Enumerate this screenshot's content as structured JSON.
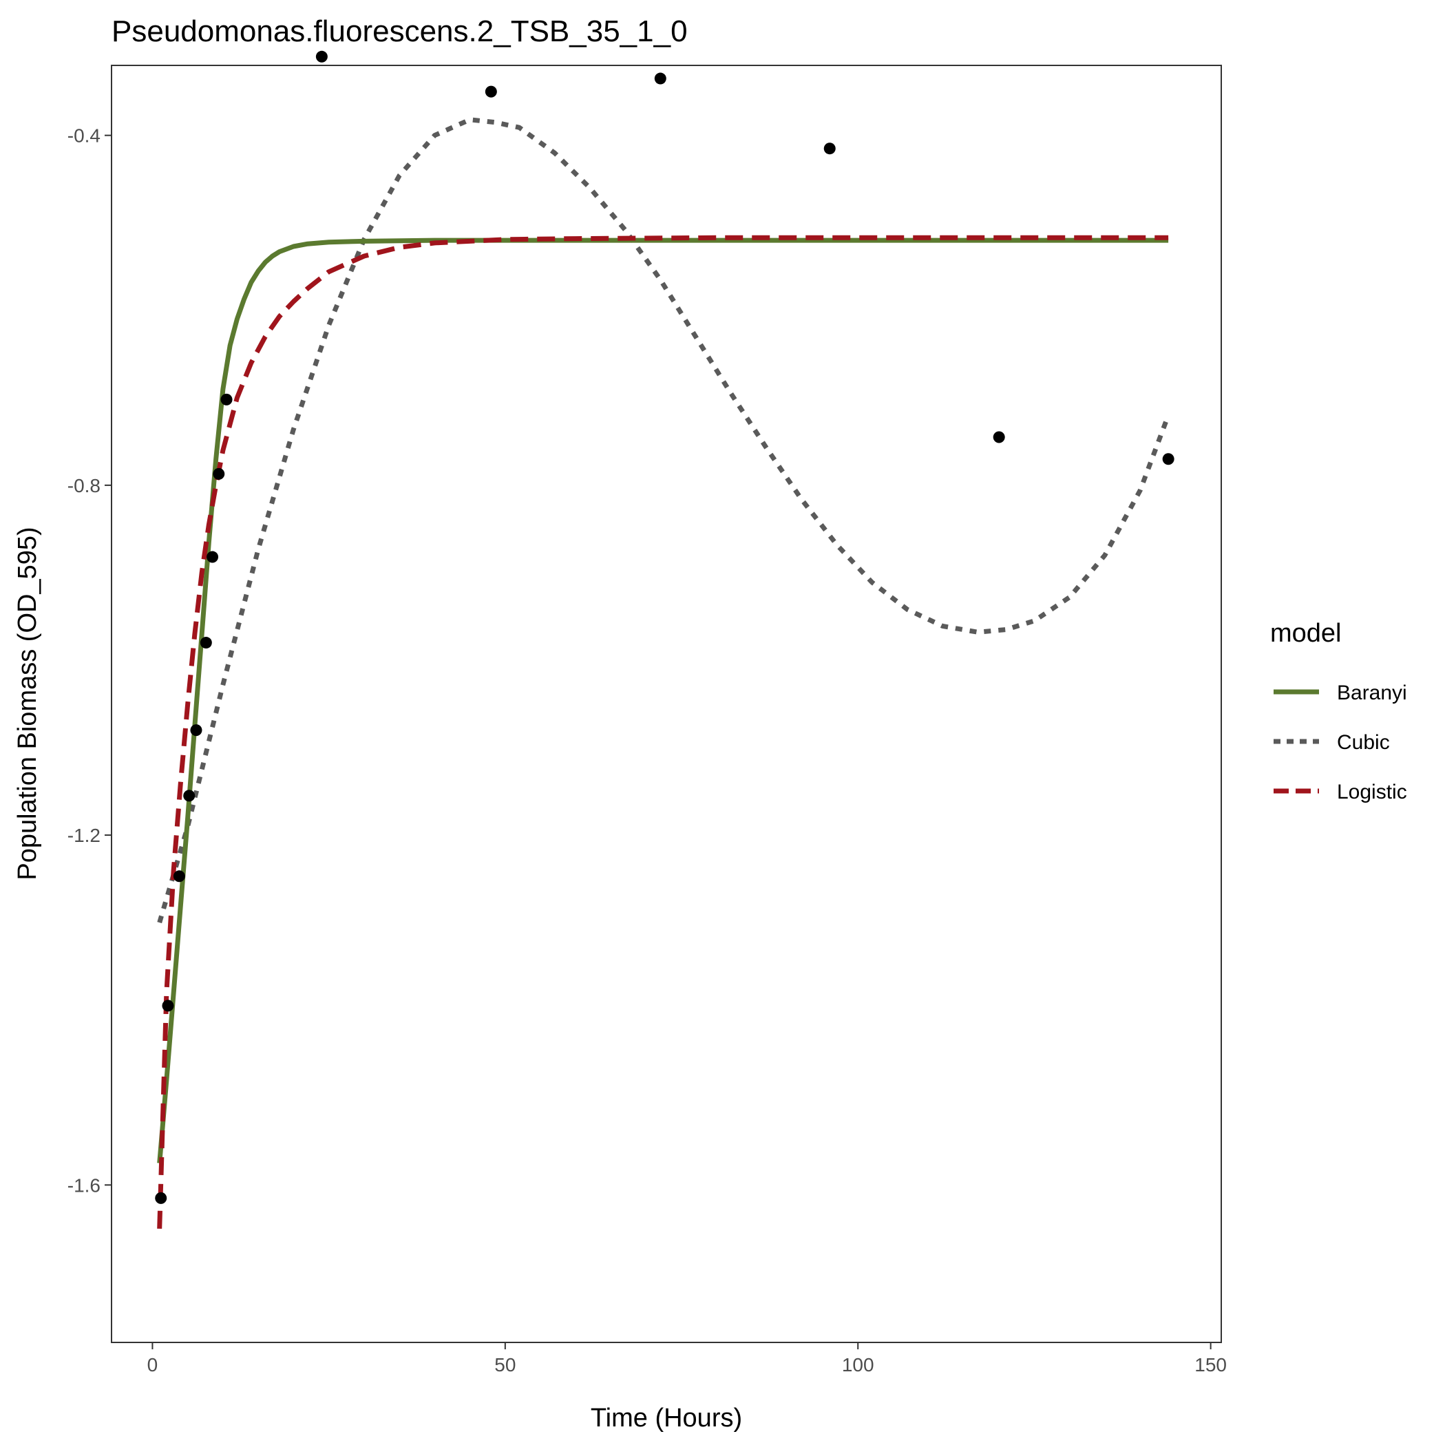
{
  "chart_data": {
    "type": "line",
    "title": "Pseudomonas.fluorescens.2_TSB_35_1_0",
    "xlabel": "Time (Hours)",
    "ylabel": "Population Biomass (OD_595)",
    "xlim": [
      -5.8,
      151.5
    ],
    "ylim": [
      -1.78,
      -0.32
    ],
    "x_ticks": [
      0,
      50,
      100,
      150
    ],
    "y_ticks": [
      -1.6,
      -1.2,
      -0.8,
      -0.4
    ],
    "grid": false,
    "legend": {
      "title": "model",
      "position": "right",
      "entries": [
        {
          "label": "Baranyi",
          "color": "#5b7a2f",
          "dash": "solid"
        },
        {
          "label": "Cubic",
          "color": "#5a5a5a",
          "dash": "dotted"
        },
        {
          "label": "Logistic",
          "color": "#a0141c",
          "dash": "dashed"
        }
      ]
    },
    "points": {
      "x": [
        1.2,
        2.2,
        3.8,
        5.2,
        6.2,
        7.6,
        8.5,
        9.4,
        10.5,
        24.0,
        48.0,
        72.0,
        96.0,
        120.0,
        144.0
      ],
      "y": [
        -1.615,
        -1.395,
        -1.247,
        -1.155,
        -1.08,
        -0.98,
        -0.882,
        -0.787,
        -0.702,
        -0.31,
        -0.35,
        -0.335,
        -0.415,
        -0.745,
        -0.77
      ]
    },
    "series": [
      {
        "name": "Baranyi",
        "x": [
          1,
          2,
          3,
          4,
          5,
          6,
          7,
          8,
          9,
          10,
          11,
          12,
          13,
          14,
          15,
          16,
          17,
          18,
          20,
          22,
          25,
          30,
          40,
          60,
          100,
          144
        ],
        "y": [
          -1.575,
          -1.48,
          -1.38,
          -1.28,
          -1.18,
          -1.075,
          -0.97,
          -0.865,
          -0.77,
          -0.69,
          -0.64,
          -0.61,
          -0.587,
          -0.568,
          -0.555,
          -0.545,
          -0.538,
          -0.533,
          -0.527,
          -0.524,
          -0.522,
          -0.521,
          -0.52,
          -0.52,
          -0.52,
          -0.52
        ]
      },
      {
        "name": "Cubic",
        "x": [
          1,
          5,
          10,
          15,
          20,
          25,
          30,
          35,
          40,
          45,
          48.5,
          52,
          57,
          62,
          67,
          72,
          77,
          82,
          87,
          92,
          97,
          102,
          107,
          112,
          117,
          121,
          125,
          130,
          135,
          140,
          144
        ],
        "y": [
          -1.3,
          -1.19,
          -1.028,
          -0.873,
          -0.736,
          -0.617,
          -0.519,
          -0.446,
          -0.4,
          -0.382,
          -0.385,
          -0.391,
          -0.42,
          -0.46,
          -0.508,
          -0.565,
          -0.63,
          -0.695,
          -0.757,
          -0.816,
          -0.868,
          -0.911,
          -0.942,
          -0.961,
          -0.968,
          -0.965,
          -0.955,
          -0.928,
          -0.88,
          -0.806,
          -0.72
        ]
      },
      {
        "name": "Logistic",
        "x": [
          1,
          2,
          3,
          4,
          5,
          6,
          7,
          8,
          9,
          10,
          12,
          14,
          16,
          18,
          20,
          22,
          25,
          30,
          35,
          40,
          50,
          60,
          80,
          100,
          144
        ],
        "y": [
          -1.65,
          -1.38,
          -1.24,
          -1.14,
          -1.05,
          -0.97,
          -0.9,
          -0.845,
          -0.8,
          -0.76,
          -0.7,
          -0.66,
          -0.63,
          -0.607,
          -0.59,
          -0.575,
          -0.556,
          -0.538,
          -0.528,
          -0.523,
          -0.519,
          -0.518,
          -0.517,
          -0.517,
          -0.517
        ]
      }
    ]
  }
}
